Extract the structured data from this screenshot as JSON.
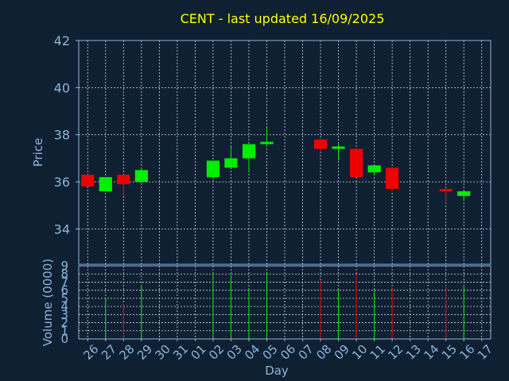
{
  "colors": {
    "background": "#0f2033",
    "axis": "#8fb4dc",
    "grid": "#cfd8e3",
    "title": "#ffff00",
    "up": "#00ee00",
    "down": "#ee0000"
  },
  "chart_data": {
    "type": "candlestick",
    "title": "CENT - last updated 16/09/2025",
    "xlabel": "Day",
    "price_label": "Price",
    "volume_label": "Volume (0000)",
    "x_tick_labels": [
      "26",
      "27",
      "28",
      "29",
      "30",
      "31",
      "01",
      "02",
      "03",
      "04",
      "05",
      "06",
      "07",
      "08",
      "09",
      "10",
      "11",
      "12",
      "13",
      "14",
      "15",
      "16",
      "17"
    ],
    "price_ticks": [
      34,
      36,
      38,
      40,
      42
    ],
    "price_ylim": [
      32.5,
      42
    ],
    "volume_ticks": [
      0,
      1,
      2,
      3,
      4,
      5,
      6,
      7,
      8,
      9
    ],
    "volume_ylim": [
      0,
      9
    ],
    "grid": true,
    "candles": [
      {
        "day": "26",
        "open": 36.3,
        "high": 36.3,
        "low": 35.8,
        "close": 35.8,
        "volume": 0
      },
      {
        "day": "27",
        "open": 35.6,
        "high": 36.2,
        "low": 35.6,
        "close": 36.2,
        "volume": 5.0
      },
      {
        "day": "28",
        "open": 36.3,
        "high": 36.3,
        "low": 35.4,
        "close": 35.9,
        "volume": 4.3
      },
      {
        "day": "29",
        "open": 36.0,
        "high": 36.6,
        "low": 35.9,
        "close": 36.5,
        "volume": 6.6
      },
      {
        "day": "02",
        "open": 36.2,
        "high": 36.9,
        "low": 36.1,
        "close": 36.9,
        "volume": 8.0
      },
      {
        "day": "03",
        "open": 36.6,
        "high": 37.5,
        "low": 36.6,
        "close": 37.0,
        "volume": 7.9
      },
      {
        "day": "04",
        "open": 37.0,
        "high": 37.6,
        "low": 36.4,
        "close": 37.6,
        "volume": 6.0
      },
      {
        "day": "05",
        "open": 37.6,
        "high": 38.3,
        "low": 37.5,
        "close": 37.7,
        "volume": 8.0
      },
      {
        "day": "08",
        "open": 37.8,
        "high": 37.8,
        "low": 37.3,
        "close": 37.4,
        "volume": 7.2
      },
      {
        "day": "09",
        "open": 37.4,
        "high": 37.6,
        "low": 36.9,
        "close": 37.5,
        "volume": 6.0
      },
      {
        "day": "10",
        "open": 37.4,
        "high": 37.4,
        "low": 36.2,
        "close": 36.2,
        "volume": 8.0
      },
      {
        "day": "11",
        "open": 36.4,
        "high": 36.7,
        "low": 36.3,
        "close": 36.7,
        "volume": 6.0
      },
      {
        "day": "12",
        "open": 36.6,
        "high": 36.6,
        "low": 35.6,
        "close": 35.7,
        "volume": 6.2
      },
      {
        "day": "15",
        "open": 35.7,
        "high": 35.7,
        "low": 35.1,
        "close": 35.6,
        "volume": 6.6
      },
      {
        "day": "16",
        "open": 35.4,
        "high": 35.6,
        "low": 35.2,
        "close": 35.6,
        "volume": 6.6
      }
    ]
  }
}
